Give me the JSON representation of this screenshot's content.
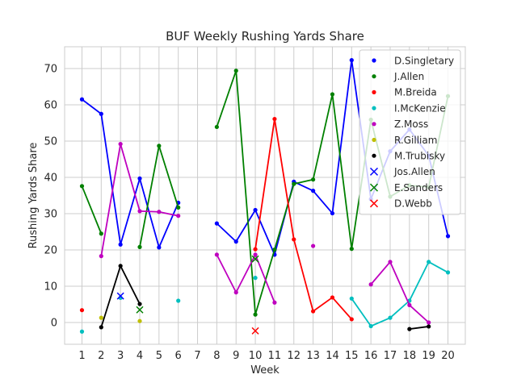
{
  "chart_data": {
    "type": "line",
    "title": "BUF Weekly Rushing Yards Share",
    "xlabel": "Week",
    "ylabel": "Rushing Yards Share",
    "xlim": [
      0.1,
      20.9
    ],
    "ylim": [
      -6,
      76
    ],
    "xticks": [
      1,
      2,
      3,
      4,
      5,
      6,
      7,
      8,
      9,
      10,
      11,
      12,
      13,
      14,
      15,
      16,
      17,
      18,
      19,
      20
    ],
    "yticks": [
      0,
      10,
      20,
      30,
      40,
      50,
      60,
      70
    ],
    "grid": true,
    "legend_position": "top-right",
    "series": [
      {
        "name": "D.Singletary",
        "color": "#0000ff",
        "marker": "dot",
        "points": [
          [
            1,
            61.5
          ],
          [
            2,
            57.5
          ],
          [
            3,
            21.5
          ],
          [
            4,
            39.7
          ],
          [
            5,
            20.7
          ],
          [
            6,
            33.0
          ],
          [
            8,
            27.3
          ],
          [
            9,
            22.3
          ],
          [
            10,
            31.0
          ],
          [
            11,
            18.7
          ],
          [
            12,
            38.8
          ],
          [
            13,
            36.3
          ],
          [
            14,
            30.1
          ],
          [
            15,
            72.3
          ],
          [
            16,
            34.0
          ],
          [
            17,
            47.2
          ],
          [
            18,
            53.2
          ],
          [
            19,
            46.0
          ],
          [
            20,
            23.8
          ]
        ]
      },
      {
        "name": "J.Allen",
        "color": "#008000",
        "marker": "dot",
        "points": [
          [
            1,
            37.6
          ],
          [
            2,
            24.5
          ],
          [
            4,
            20.8
          ],
          [
            5,
            48.7
          ],
          [
            6,
            31.7
          ],
          [
            8,
            53.9
          ],
          [
            9,
            69.4
          ],
          [
            10,
            2.2
          ],
          [
            11,
            20.1
          ],
          [
            12,
            38.2
          ],
          [
            13,
            39.4
          ],
          [
            14,
            62.9
          ],
          [
            15,
            20.3
          ],
          [
            16,
            55.9
          ],
          [
            17,
            34.7
          ],
          [
            18,
            37.8
          ],
          [
            19,
            37.3
          ],
          [
            20,
            62.4
          ]
        ]
      },
      {
        "name": "M.Breida",
        "color": "#ff0000",
        "marker": "dot",
        "points": [
          [
            1,
            3.4
          ],
          [
            10,
            20.2
          ],
          [
            11,
            56.1
          ],
          [
            12,
            22.9
          ],
          [
            13,
            3.1
          ],
          [
            14,
            6.9
          ],
          [
            15,
            0.9
          ]
        ]
      },
      {
        "name": "I.McKenzie",
        "color": "#00bfbf",
        "marker": "dot",
        "points": [
          [
            1,
            -2.5
          ],
          [
            3,
            6.8
          ],
          [
            6,
            6.0
          ],
          [
            10,
            12.3
          ],
          [
            15,
            6.6
          ],
          [
            16,
            -1.0
          ],
          [
            17,
            1.3
          ],
          [
            18,
            6.0
          ],
          [
            19,
            16.7
          ],
          [
            20,
            13.8
          ]
        ]
      },
      {
        "name": "Z.Moss",
        "color": "#bf00bf",
        "marker": "dot",
        "points": [
          [
            2,
            18.3
          ],
          [
            3,
            49.2
          ],
          [
            4,
            30.7
          ],
          [
            5,
            30.5
          ],
          [
            6,
            29.4
          ],
          [
            8,
            18.7
          ],
          [
            9,
            8.3
          ],
          [
            10,
            18.7
          ],
          [
            11,
            5.5
          ],
          [
            13,
            21.1
          ],
          [
            16,
            10.5
          ],
          [
            17,
            16.7
          ],
          [
            18,
            4.8
          ],
          [
            19,
            0.0
          ]
        ]
      },
      {
        "name": "R.Gilliam",
        "color": "#bfbf00",
        "marker": "dot",
        "points": [
          [
            2,
            1.3
          ],
          [
            4,
            0.4
          ]
        ]
      },
      {
        "name": "M.Trubisky",
        "color": "#000000",
        "marker": "dot",
        "points": [
          [
            2,
            -1.3
          ],
          [
            3,
            15.6
          ],
          [
            4,
            5.1
          ],
          [
            18,
            -1.8
          ],
          [
            19,
            -1.1
          ]
        ]
      },
      {
        "name": "Jos.Allen",
        "color": "#0000ff",
        "marker": "x",
        "points": [
          [
            3,
            7.3
          ]
        ]
      },
      {
        "name": "E.Sanders",
        "color": "#008000",
        "marker": "x",
        "points": [
          [
            4,
            3.5
          ],
          [
            10,
            17.5
          ]
        ]
      },
      {
        "name": "D.Webb",
        "color": "#ff0000",
        "marker": "x",
        "points": [
          [
            10,
            -2.3
          ]
        ]
      }
    ]
  }
}
